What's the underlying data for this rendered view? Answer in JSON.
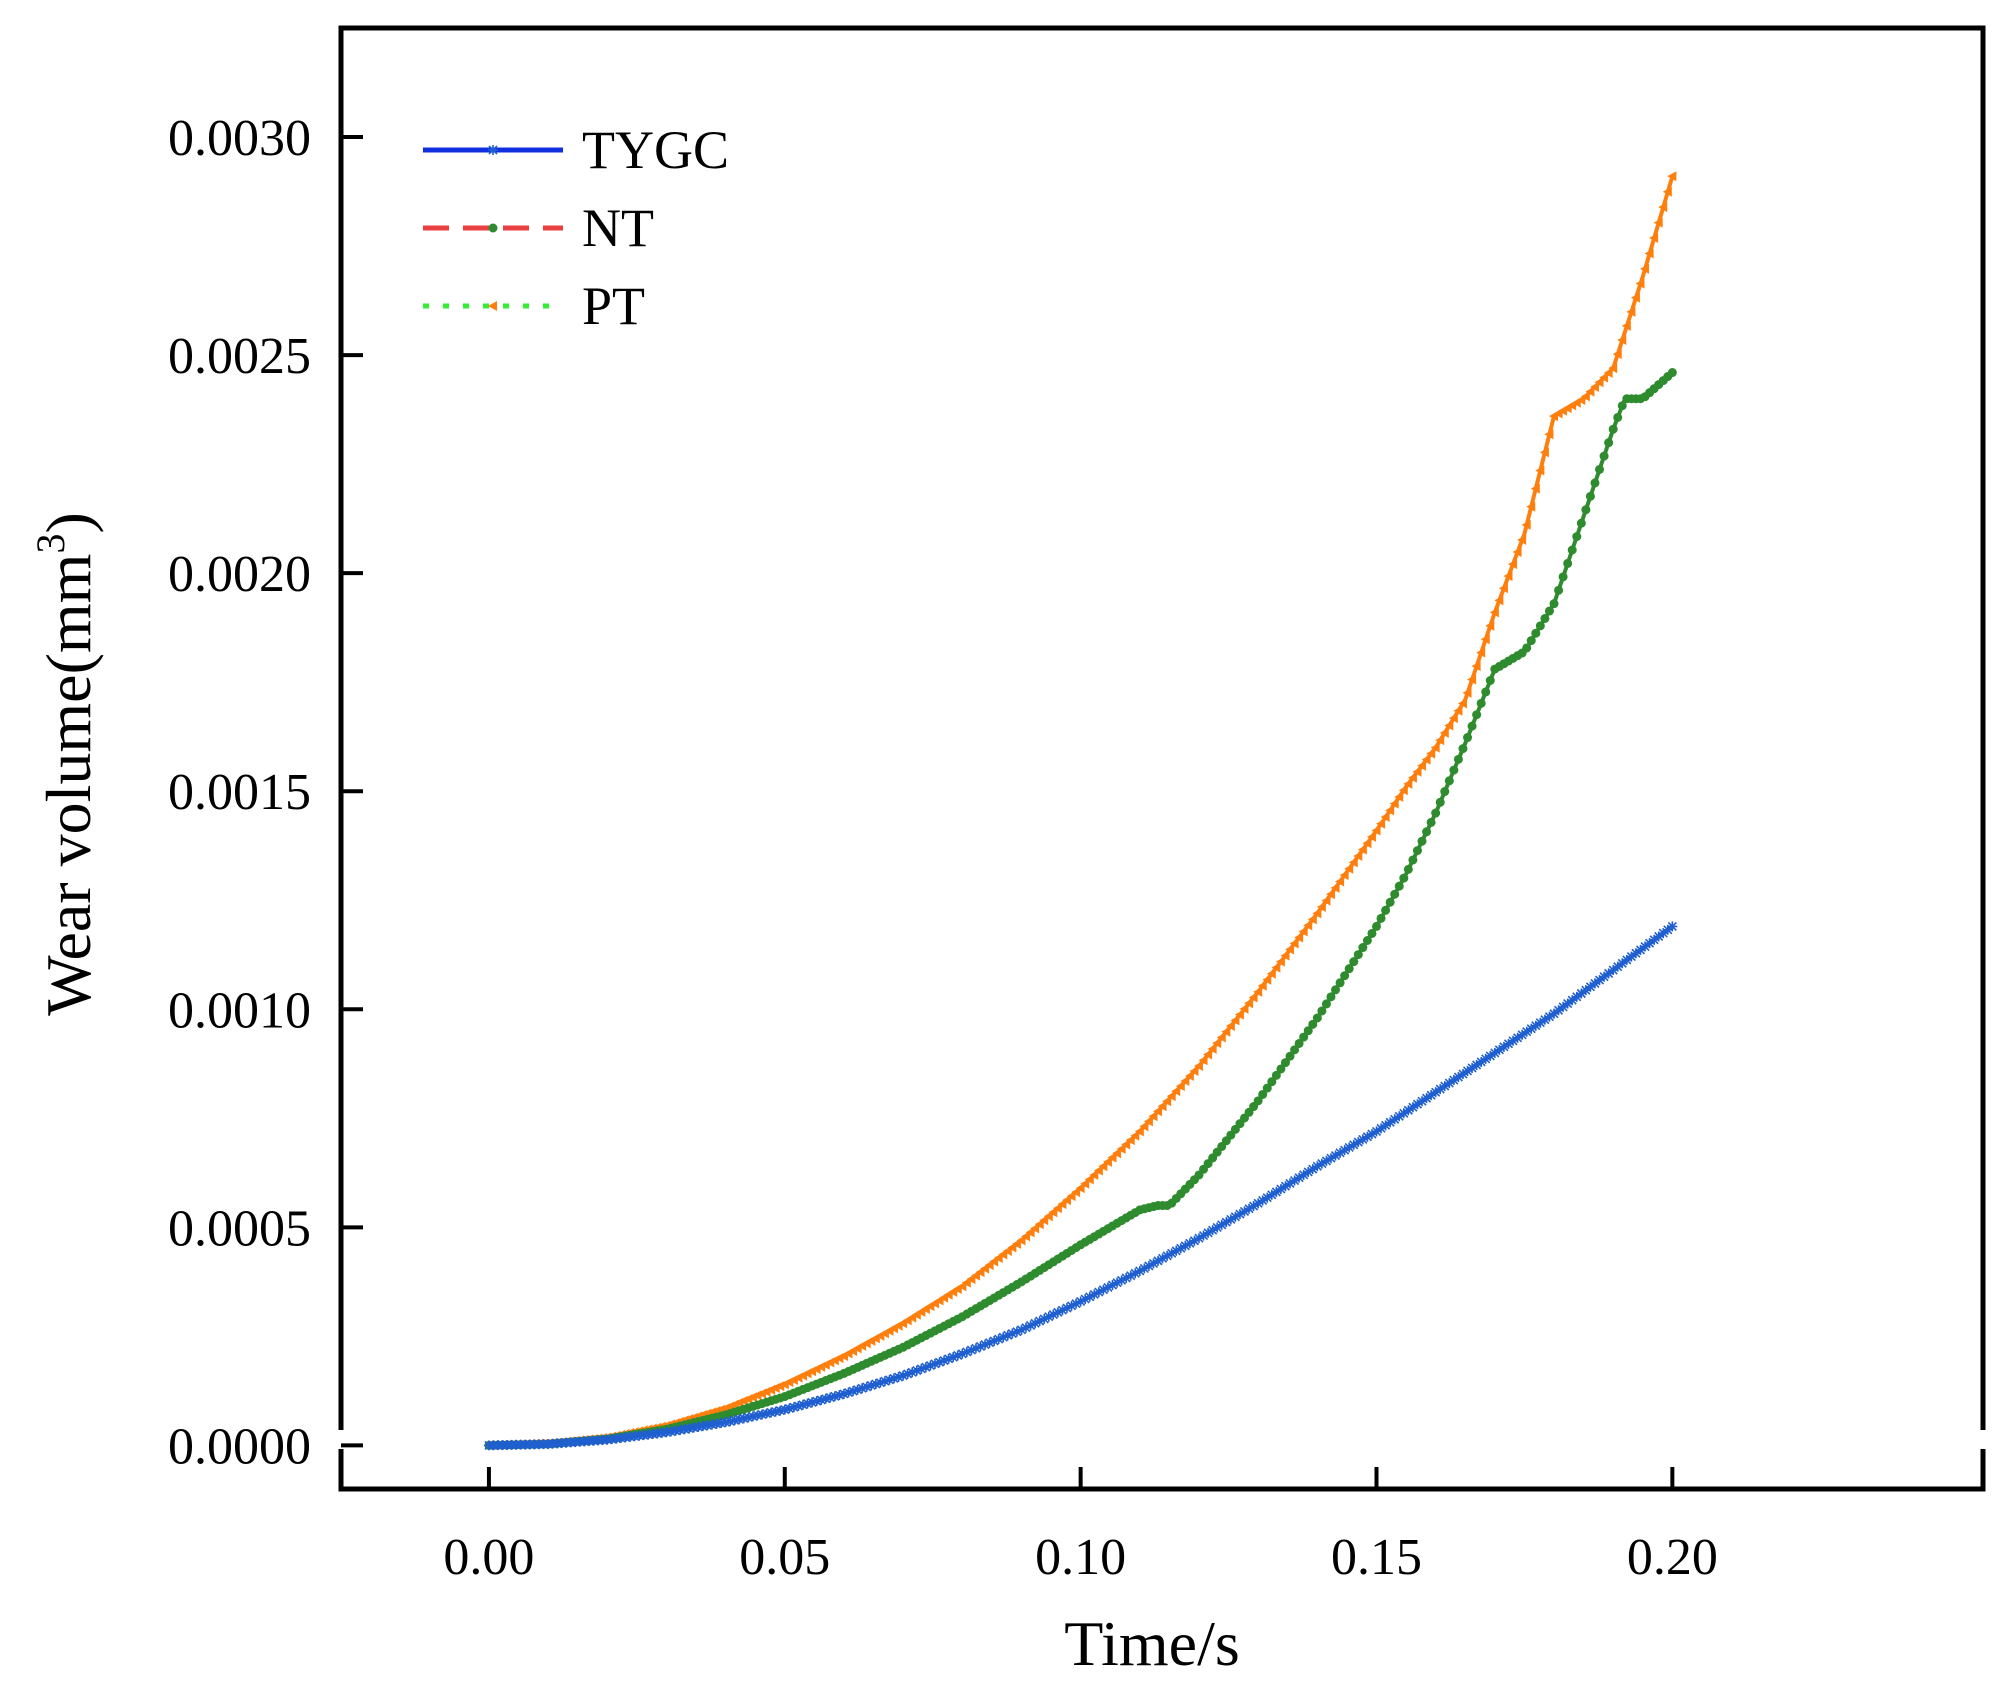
{
  "chart_data": {
    "type": "line",
    "xlabel": "Time/s",
    "ylabel_main": "Wear volume(mm",
    "ylabel_sup": "3",
    "ylabel_close": ")",
    "xlim": [
      -0.025,
      0.2525
    ],
    "ylim": [
      -0.0001,
      0.00325
    ],
    "xticks": [
      0.0,
      0.05,
      0.1,
      0.15,
      0.2
    ],
    "xtick_labels": [
      "0.00",
      "0.05",
      "0.10",
      "0.15",
      "0.20"
    ],
    "yticks": [
      0.0,
      0.0005,
      0.001,
      0.0015,
      0.002,
      0.0025,
      0.003
    ],
    "ytick_labels": [
      "0.0000",
      "0.0005",
      "0.0010",
      "0.0015",
      "0.0020",
      "0.0025",
      "0.0030"
    ],
    "legend_position": "top-left",
    "series": [
      {
        "name": "TYGC",
        "color": "#1f5fd0",
        "legend_color": "#1030e0",
        "marker": "star",
        "x": [
          0,
          0.01,
          0.02,
          0.03,
          0.04,
          0.05,
          0.06,
          0.07,
          0.08,
          0.09,
          0.1,
          0.11,
          0.12,
          0.13,
          0.14,
          0.15,
          0.16,
          0.17,
          0.18,
          0.19,
          0.2
        ],
        "y": [
          0,
          3e-06,
          1.3e-05,
          3e-05,
          5.3e-05,
          8.2e-05,
          0.000118,
          0.00016,
          0.00021,
          0.000265,
          0.00033,
          0.0004,
          0.000475,
          0.000555,
          0.00064,
          0.00072,
          0.00081,
          0.0009,
          0.00099,
          0.00109,
          0.00119
        ]
      },
      {
        "name": "NT",
        "color": "#2e8b2e",
        "legend_color": "#e84040",
        "marker": "circle",
        "x": [
          0,
          0.01,
          0.02,
          0.03,
          0.04,
          0.05,
          0.06,
          0.07,
          0.08,
          0.09,
          0.1,
          0.11,
          0.113,
          0.115,
          0.12,
          0.13,
          0.14,
          0.15,
          0.155,
          0.16,
          0.165,
          0.17,
          0.175,
          0.18,
          0.185,
          0.19,
          0.192,
          0.195,
          0.2
        ],
        "y": [
          0,
          3e-06,
          1.5e-05,
          3.7e-05,
          7e-05,
          0.000112,
          0.000165,
          0.000225,
          0.000295,
          0.000375,
          0.00046,
          0.00054,
          0.00055,
          0.00055,
          0.00062,
          0.00079,
          0.00098,
          0.00119,
          0.00131,
          0.00145,
          0.00161,
          0.00178,
          0.00182,
          0.00193,
          0.00213,
          0.00233,
          0.0024,
          0.0024,
          0.00246
        ]
      },
      {
        "name": "PT",
        "color": "#ff7f0e",
        "legend_color": "#33ee33",
        "marker": "triangle",
        "x": [
          0,
          0.01,
          0.02,
          0.03,
          0.04,
          0.05,
          0.06,
          0.07,
          0.08,
          0.09,
          0.1,
          0.11,
          0.12,
          0.13,
          0.14,
          0.15,
          0.155,
          0.16,
          0.165,
          0.17,
          0.175,
          0.18,
          0.185,
          0.19,
          0.195,
          0.2
        ],
        "y": [
          0,
          4e-06,
          1.8e-05,
          4.5e-05,
          8.5e-05,
          0.00014,
          0.000205,
          0.00028,
          0.000365,
          0.00047,
          0.00059,
          0.00072,
          0.00087,
          0.00104,
          0.00122,
          0.00141,
          0.00151,
          0.0016,
          0.00171,
          0.00191,
          0.00209,
          0.00236,
          0.0024,
          0.00247,
          0.00268,
          0.00291
        ]
      }
    ]
  }
}
